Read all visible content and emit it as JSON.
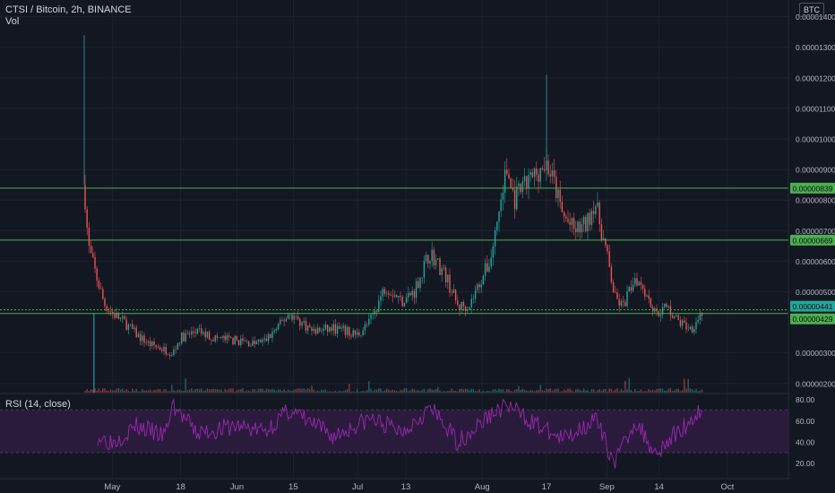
{
  "header": {
    "symbol": "CTSI / Bitcoin, 2h, BINANCE",
    "volume_label": "Vol",
    "rsi_label": "RSI (14, close)",
    "currency_badge": "BTC"
  },
  "colors": {
    "background": "#131722",
    "up": "#26a69a",
    "down": "#ef5350",
    "level_line": "#4caf50",
    "rsi_line": "#9c27b0",
    "rsi_band": "#2a1b3d",
    "grid": "#1e222d",
    "axis_text": "#b2b5be"
  },
  "chart_data": [
    {
      "type": "candlestick",
      "title": "CTSI / Bitcoin, 2h, BINANCE",
      "x_tick_labels": [
        "May",
        "18",
        "Jun",
        "15",
        "Jul",
        "13",
        "Aug",
        "17",
        "Sep",
        "14",
        "Oct"
      ],
      "y_tick_labels": [
        "0.00000200",
        "0.00000300",
        "0.00000500",
        "0.00000600",
        "0.00000700",
        "0.00000800",
        "0.00000900",
        "0.00001000",
        "0.00001100",
        "0.00001200",
        "0.00001300",
        "0.00001400"
      ],
      "ylim": [
        1.7e-06,
        1.44e-05
      ],
      "series": [
        {
          "name": "CTSI / Bitcoin",
          "points": [
            [
              "Apr 24",
              8.5e-06
            ],
            [
              "Apr 25",
              6.5e-06
            ],
            [
              "Apr 27",
              5.5e-06
            ],
            [
              "Apr 29",
              4.6e-06
            ],
            [
              "May 1",
              4.3e-06
            ],
            [
              "May 4",
              4e-06
            ],
            [
              "May 7",
              3.6e-06
            ],
            [
              "May 10",
              3.3e-06
            ],
            [
              "May 14",
              3.1e-06
            ],
            [
              "May 16",
              3e-06
            ],
            [
              "May 18",
              3.5e-06
            ],
            [
              "May 22",
              3.7e-06
            ],
            [
              "May 26",
              3.5e-06
            ],
            [
              "Jun 1",
              3.4e-06
            ],
            [
              "Jun 5",
              3.3e-06
            ],
            [
              "Jun 8",
              3.4e-06
            ],
            [
              "Jun 11",
              3.8e-06
            ],
            [
              "Jun 14",
              4.3e-06
            ],
            [
              "Jun 20",
              3.7e-06
            ],
            [
              "Jun 25",
              3.8e-06
            ],
            [
              "Jul 1",
              3.6e-06
            ],
            [
              "Jul 4",
              4e-06
            ],
            [
              "Jul 8",
              5.2e-06
            ],
            [
              "Jul 12",
              4.7e-06
            ],
            [
              "Jul 15",
              5e-06
            ],
            [
              "Jul 19",
              6.3e-06
            ],
            [
              "Jul 23",
              5.5e-06
            ],
            [
              "Jul 26",
              4.5e-06
            ],
            [
              "Jul 29",
              4.6e-06
            ],
            [
              "Aug 1",
              5.5e-06
            ],
            [
              "Aug 3",
              6e-06
            ],
            [
              "Aug 5",
              7.5e-06
            ],
            [
              "Aug 7",
              9e-06
            ],
            [
              "Aug 9",
              8e-06
            ],
            [
              "Aug 12",
              8.5e-06
            ],
            [
              "Aug 15",
              9e-06
            ],
            [
              "Aug 17",
              9.2e-06
            ],
            [
              "Aug 19",
              8.5e-06
            ],
            [
              "Aug 21",
              7.5e-06
            ],
            [
              "Aug 24",
              7e-06
            ],
            [
              "Aug 27",
              7.2e-06
            ],
            [
              "Aug 29",
              8e-06
            ],
            [
              "Sep 1",
              6.2e-06
            ],
            [
              "Sep 3",
              4.8e-06
            ],
            [
              "Sep 5",
              4.5e-06
            ],
            [
              "Sep 8",
              5.5e-06
            ],
            [
              "Sep 10",
              5.2e-06
            ],
            [
              "Sep 13",
              4.3e-06
            ],
            [
              "Sep 16",
              4.5e-06
            ],
            [
              "Sep 19",
              4e-06
            ],
            [
              "Sep 22",
              3.8e-06
            ],
            [
              "Sep 25",
              4.4e-06
            ]
          ]
        }
      ],
      "highs": [
        [
          "Apr 24",
          1.34e-05
        ],
        [
          "Aug 17",
          1.21e-05
        ]
      ],
      "horizontal_levels": [
        {
          "label": "0.00000839",
          "value": 8.39e-06
        },
        {
          "label": "0.00000669",
          "value": 6.69e-06
        },
        {
          "label": "0.00000441",
          "value": 4.41e-06
        },
        {
          "label": "0.00000429",
          "value": 4.29e-06
        }
      ]
    },
    {
      "type": "line",
      "title": "RSI (14, close)",
      "y_tick_labels": [
        "80.00",
        "60.00",
        "40.00",
        "20.00"
      ],
      "ylim": [
        13,
        83
      ],
      "band": [
        30,
        70
      ],
      "series": [
        {
          "points": [
            [
              "Apr 24",
              50
            ],
            [
              "May 1",
              40
            ],
            [
              "May 7",
              55
            ],
            [
              "May 14",
              45
            ],
            [
              "May 16",
              75
            ],
            [
              "May 22",
              48
            ],
            [
              "Jun 1",
              55
            ],
            [
              "Jun 8",
              50
            ],
            [
              "Jun 14",
              70
            ],
            [
              "Jun 25",
              45
            ],
            [
              "Jul 4",
              62
            ],
            [
              "Jul 12",
              50
            ],
            [
              "Jul 19",
              72
            ],
            [
              "Jul 26",
              40
            ],
            [
              "Aug 3",
              65
            ],
            [
              "Aug 7",
              75
            ],
            [
              "Aug 15",
              55
            ],
            [
              "Aug 21",
              42
            ],
            [
              "Aug 29",
              62
            ],
            [
              "Sep 3",
              20
            ],
            [
              "Sep 8",
              60
            ],
            [
              "Sep 13",
              30
            ],
            [
              "Sep 19",
              50
            ],
            [
              "Sep 25",
              72
            ]
          ]
        }
      ]
    }
  ]
}
